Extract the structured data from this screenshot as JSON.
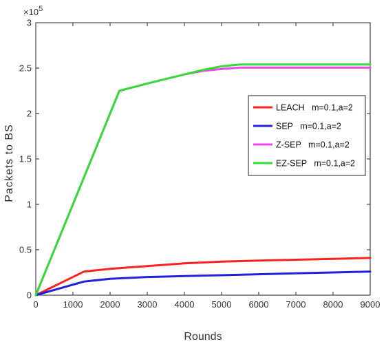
{
  "chart_data": {
    "type": "line",
    "title": "",
    "xlabel": "Rounds",
    "ylabel": "Packets to BS",
    "y_exponent_label": "×10",
    "y_exponent_power": "5",
    "xlim": [
      0,
      9000
    ],
    "ylim": [
      0,
      300000
    ],
    "x_ticks": [
      "0",
      "1000",
      "2000",
      "3000",
      "4000",
      "5000",
      "6000",
      "7000",
      "8000",
      "9000"
    ],
    "y_ticks": [
      "0",
      "0.5",
      "1",
      "1.5",
      "2",
      "2.5",
      "3"
    ],
    "grid": false,
    "legend_position": "right",
    "series": [
      {
        "name": "LEACH   m=0.1,a=2",
        "color": "#ff2020",
        "x": [
          0,
          1300,
          2000,
          3000,
          4000,
          5000,
          6000,
          7000,
          8000,
          9000
        ],
        "y": [
          0,
          26000,
          29000,
          32000,
          35000,
          37000,
          38000,
          39000,
          40000,
          41000
        ]
      },
      {
        "name": "SEP   m=0.1,a=2",
        "color": "#2020dd",
        "x": [
          0,
          1300,
          2000,
          3000,
          4000,
          5000,
          6000,
          7000,
          8000,
          9000
        ],
        "y": [
          0,
          15000,
          18000,
          20000,
          21000,
          22000,
          23000,
          24000,
          25000,
          26000
        ]
      },
      {
        "name": "Z-SEP   m=0.1,a=2",
        "color": "#ee44ee",
        "x": [
          0,
          2250,
          3000,
          4000,
          4500,
          5000,
          5500,
          6000,
          7000,
          8000,
          9000
        ],
        "y": [
          0,
          225000,
          233000,
          243000,
          247000,
          249000,
          250500,
          250500,
          250500,
          250500,
          250500
        ]
      },
      {
        "name": "EZ-SEP   m=0.1,a=2",
        "color": "#33dd33",
        "x": [
          0,
          2250,
          3000,
          4000,
          4500,
          5000,
          5500,
          5700,
          6000,
          7000,
          8000,
          9000
        ],
        "y": [
          0,
          225000,
          233000,
          243000,
          248000,
          252000,
          254000,
          254000,
          254000,
          254000,
          254000,
          254000
        ]
      }
    ]
  }
}
